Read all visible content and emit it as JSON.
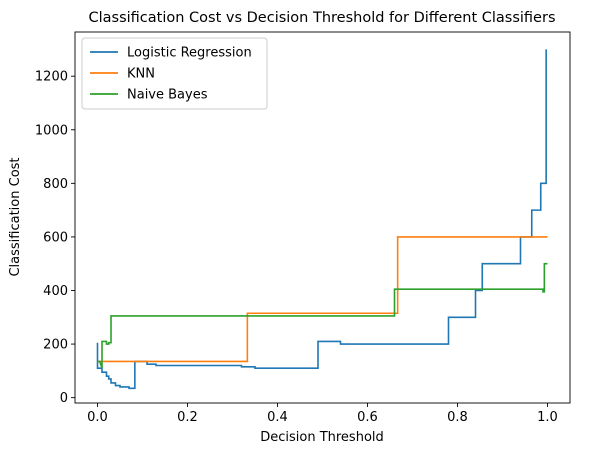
{
  "chart_data": {
    "type": "line",
    "title": "Classification Cost vs Decision Threshold for Different Classifiers",
    "xlabel": "Decision Threshold",
    "ylabel": "Classification Cost",
    "xlim": [
      -0.05,
      1.05
    ],
    "ylim": [
      -20,
      1365
    ],
    "xticks": [
      0.0,
      0.2,
      0.4,
      0.6,
      0.8,
      1.0
    ],
    "xtick_labels": [
      "0.0",
      "0.2",
      "0.4",
      "0.6",
      "0.8",
      "1.0"
    ],
    "yticks": [
      0,
      200,
      400,
      600,
      800,
      1000,
      1200
    ],
    "ytick_labels": [
      "0",
      "200",
      "400",
      "600",
      "800",
      "1000",
      "1200"
    ],
    "grid": false,
    "legend_position": "top-left",
    "series": [
      {
        "name": "Logistic Regression",
        "color": "#1f77b4",
        "x": [
          0.0,
          0.0,
          0.01,
          0.01,
          0.02,
          0.02,
          0.025,
          0.025,
          0.03,
          0.03,
          0.04,
          0.04,
          0.05,
          0.05,
          0.07,
          0.07,
          0.083,
          0.083,
          0.085,
          0.085,
          0.11,
          0.11,
          0.13,
          0.13,
          0.32,
          0.32,
          0.35,
          0.35,
          0.49,
          0.49,
          0.54,
          0.54,
          0.78,
          0.78,
          0.84,
          0.84,
          0.855,
          0.855,
          0.94,
          0.94,
          0.965,
          0.965,
          0.985,
          0.985,
          0.99,
          0.99,
          0.997,
          0.997
        ],
        "values": [
          205,
          110,
          110,
          95,
          95,
          80,
          80,
          70,
          70,
          55,
          55,
          45,
          45,
          40,
          40,
          35,
          35,
          135,
          135,
          135,
          135,
          125,
          125,
          120,
          120,
          115,
          115,
          110,
          110,
          210,
          210,
          200,
          200,
          300,
          300,
          400,
          400,
          500,
          500,
          600,
          600,
          700,
          700,
          800,
          800,
          800,
          800,
          1300
        ]
      },
      {
        "name": "KNN",
        "color": "#ff7f0e",
        "x": [
          0.0,
          0.333,
          0.333,
          0.667,
          0.667,
          1.0
        ],
        "values": [
          135,
          135,
          315,
          315,
          600,
          600
        ]
      },
      {
        "name": "Naive Bayes",
        "color": "#2ca02c",
        "x": [
          0.0,
          0.005,
          0.01,
          0.01,
          0.02,
          0.02,
          0.025,
          0.025,
          0.03,
          0.03,
          0.035,
          0.035,
          0.66,
          0.66,
          0.99,
          0.99,
          0.993,
          0.993,
          1.0
        ],
        "values": [
          135,
          135,
          110,
          210,
          210,
          200,
          200,
          205,
          205,
          305,
          305,
          305,
          305,
          405,
          405,
          395,
          395,
          500,
          500
        ]
      }
    ]
  }
}
